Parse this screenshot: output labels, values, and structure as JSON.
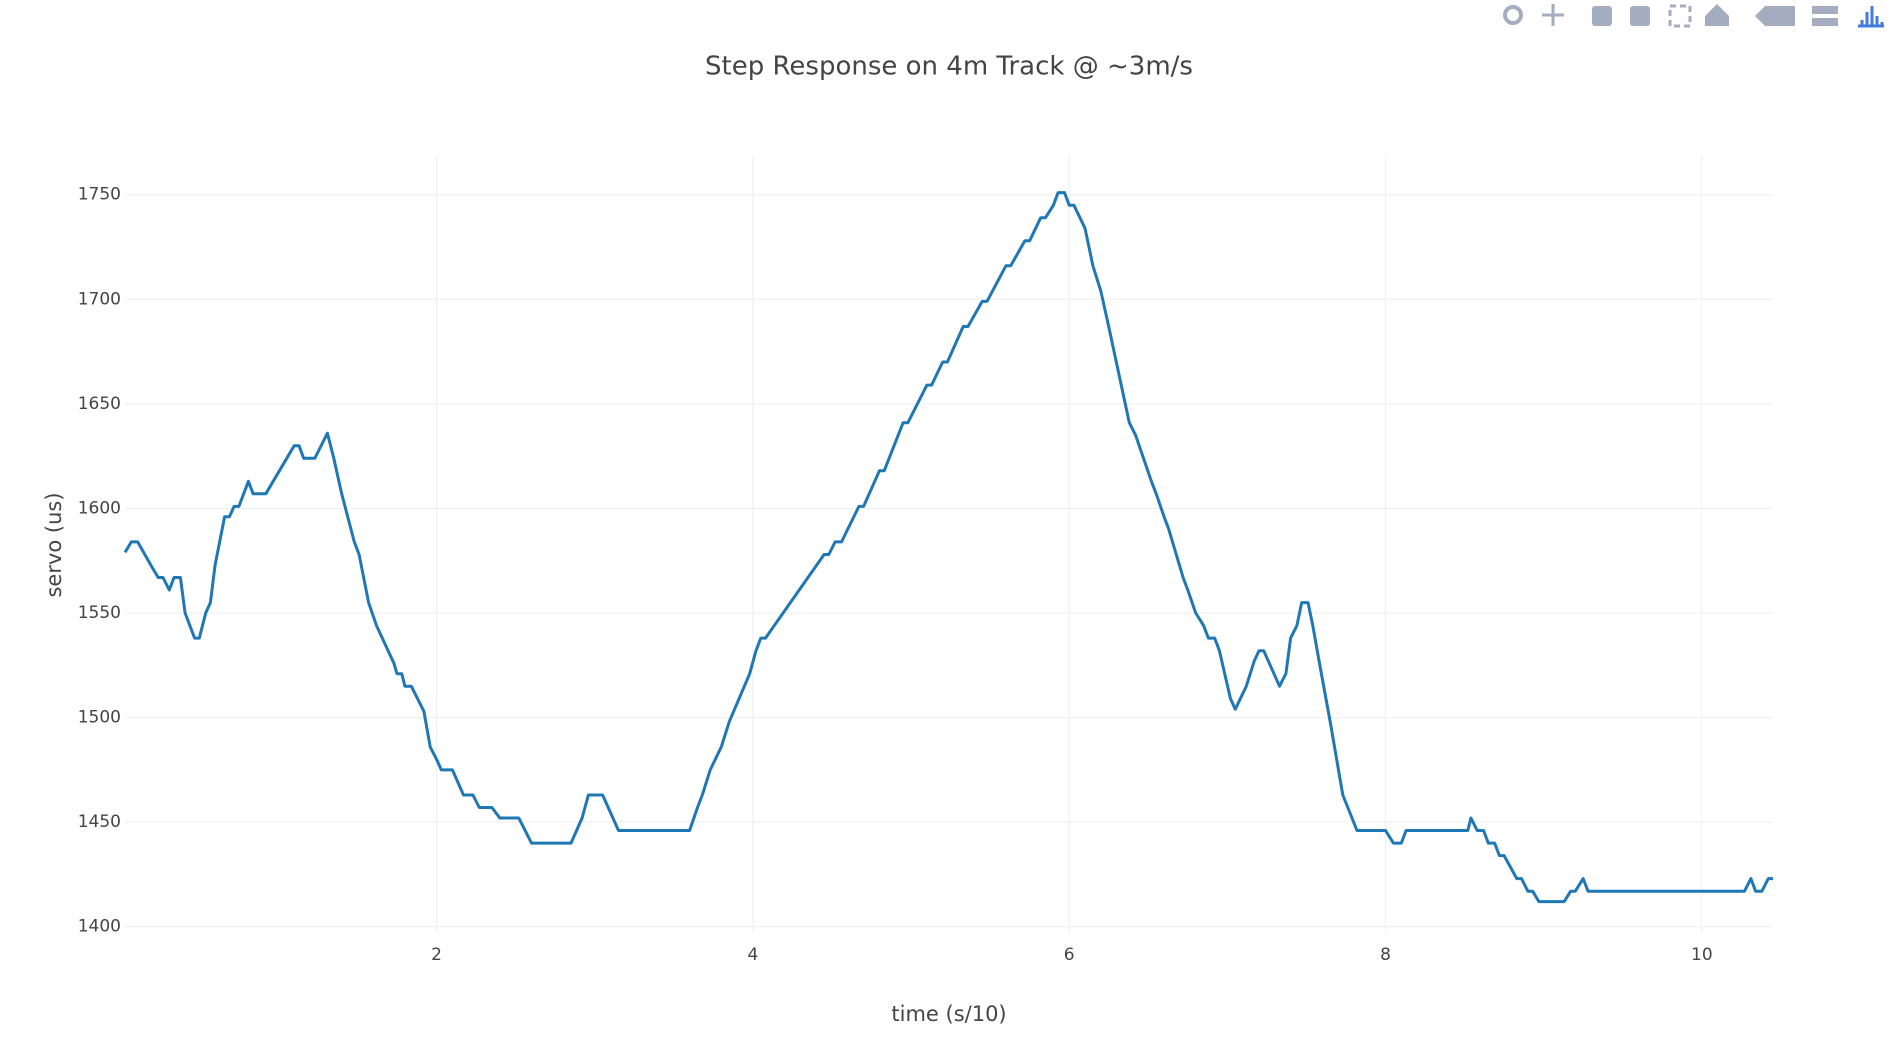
{
  "chart_data": {
    "type": "line",
    "title": "Step Response on 4m Track @ ~3m/s",
    "x_label": "time (s/10)",
    "y_label": "servo (us)",
    "color": "#1f77b4",
    "grid": true,
    "xlim": [
      0.03,
      10.45
    ],
    "ylim": [
      1397,
      1769
    ],
    "xticks": [
      2,
      4,
      6,
      8,
      10
    ],
    "yticks": [
      1400,
      1450,
      1500,
      1550,
      1600,
      1650,
      1700,
      1750
    ],
    "x": [
      0.03,
      0.07,
      0.11,
      0.2,
      0.24,
      0.27,
      0.31,
      0.34,
      0.38,
      0.41,
      0.47,
      0.5,
      0.54,
      0.57,
      0.6,
      0.66,
      0.69,
      0.72,
      0.75,
      0.81,
      0.84,
      0.92,
      1.1,
      1.13,
      1.16,
      1.23,
      1.31,
      1.35,
      1.4,
      1.48,
      1.51,
      1.57,
      1.62,
      1.73,
      1.75,
      1.78,
      1.8,
      1.84,
      1.92,
      1.96,
      2.0,
      2.03,
      2.1,
      2.17,
      2.23,
      2.27,
      2.35,
      2.4,
      2.52,
      2.6,
      2.85,
      2.92,
      2.96,
      3.05,
      3.15,
      3.6,
      3.65,
      3.68,
      3.73,
      3.8,
      3.85,
      3.98,
      4.02,
      4.05,
      4.08,
      4.45,
      4.48,
      4.52,
      4.56,
      4.67,
      4.7,
      4.8,
      4.83,
      4.95,
      4.98,
      5.1,
      5.13,
      5.2,
      5.23,
      5.33,
      5.36,
      5.45,
      5.48,
      5.6,
      5.63,
      5.72,
      5.75,
      5.82,
      5.85,
      5.9,
      5.93,
      5.97,
      6.0,
      6.03,
      6.1,
      6.15,
      6.2,
      6.25,
      6.38,
      6.42,
      6.52,
      6.55,
      6.6,
      6.63,
      6.72,
      6.75,
      6.8,
      6.85,
      6.88,
      6.92,
      6.95,
      7.02,
      7.05,
      7.12,
      7.17,
      7.2,
      7.23,
      7.33,
      7.37,
      7.4,
      7.44,
      7.47,
      7.51,
      7.54,
      7.58,
      7.65,
      7.73,
      7.82,
      8.0,
      8.05,
      8.1,
      8.13,
      8.52,
      8.54,
      8.58,
      8.62,
      8.65,
      8.69,
      8.72,
      8.75,
      8.83,
      8.86,
      8.9,
      8.93,
      8.97,
      9.13,
      9.17,
      9.2,
      9.25,
      9.28,
      10.27,
      10.31,
      10.34,
      10.38,
      10.42,
      10.45
    ],
    "values": [
      1579,
      1584,
      1584,
      1572,
      1567,
      1567,
      1561,
      1567,
      1567,
      1550,
      1538,
      1538,
      1550,
      1555,
      1573,
      1596,
      1596,
      1601,
      1601,
      1613,
      1607,
      1607,
      1630,
      1630,
      1624,
      1624,
      1636,
      1624,
      1607,
      1584,
      1578,
      1555,
      1544,
      1526,
      1521,
      1521,
      1515,
      1515,
      1503,
      1486,
      1480,
      1475,
      1475,
      1463,
      1463,
      1457,
      1457,
      1452,
      1452,
      1440,
      1440,
      1452,
      1463,
      1463,
      1446,
      1446,
      1457,
      1463,
      1475,
      1486,
      1498,
      1521,
      1532,
      1538,
      1538,
      1578,
      1578,
      1584,
      1584,
      1601,
      1601,
      1618,
      1618,
      1641,
      1641,
      1659,
      1659,
      1670,
      1670,
      1687,
      1687,
      1699,
      1699,
      1716,
      1716,
      1728,
      1728,
      1739,
      1739,
      1745,
      1751,
      1751,
      1745,
      1745,
      1734,
      1716,
      1704,
      1687,
      1641,
      1635,
      1613,
      1607,
      1596,
      1590,
      1567,
      1561,
      1550,
      1544,
      1538,
      1538,
      1532,
      1509,
      1504,
      1515,
      1527,
      1532,
      1532,
      1515,
      1521,
      1538,
      1544,
      1555,
      1555,
      1544,
      1527,
      1498,
      1463,
      1446,
      1446,
      1440,
      1440,
      1446,
      1446,
      1452,
      1446,
      1446,
      1440,
      1440,
      1434,
      1434,
      1423,
      1423,
      1417,
      1417,
      1412,
      1412,
      1417,
      1417,
      1423,
      1417,
      1417,
      1423,
      1417,
      1417,
      1423,
      1423
    ]
  }
}
